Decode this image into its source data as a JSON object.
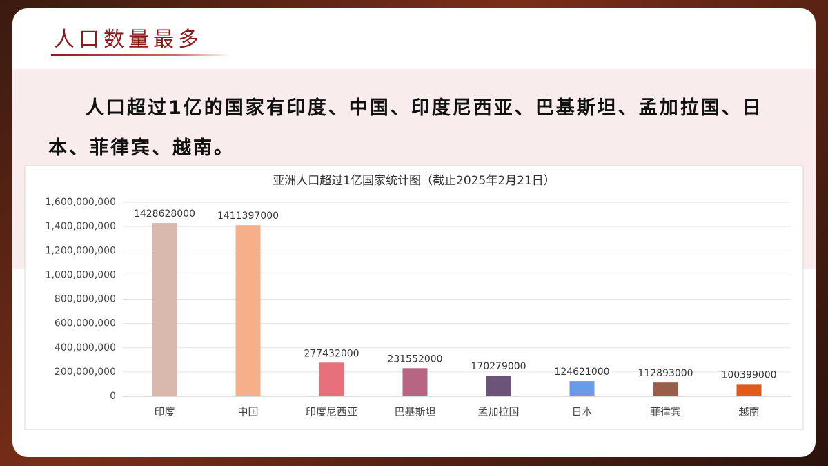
{
  "header": {
    "title": "人口数量最多"
  },
  "paragraph": "人口超过1亿的国家有印度、中国、印度尼西亚、巴基斯坦、孟加拉国、日本、菲律宾、越南。",
  "chart_data": {
    "type": "bar",
    "title": "亚洲人口超过1亿国家统计图（截止2025年2月21日）",
    "categories": [
      "印度",
      "中国",
      "印度尼西亚",
      "巴基斯坦",
      "孟加拉国",
      "日本",
      "菲律宾",
      "越南"
    ],
    "values": [
      1428628000,
      1411397000,
      277432000,
      231552000,
      170279000,
      124621000,
      112893000,
      100399000
    ],
    "colors": [
      "#d9b8ae",
      "#f5b08a",
      "#e8707c",
      "#b86483",
      "#6b5478",
      "#6a9be8",
      "#9a5d4a",
      "#e05a1a"
    ],
    "ylim": [
      0,
      1600000000
    ],
    "yticks": [
      0,
      {
        "value": 200000000,
        "label": "200,000,000"
      },
      {
        "value": 400000000,
        "label": "400,000,000"
      },
      {
        "value": 600000000,
        "label": "600,000,000"
      },
      {
        "value": 800000000,
        "label": "800,000,000"
      },
      {
        "value": 1000000000,
        "label": "1,000,000,000"
      },
      {
        "value": 1200000000,
        "label": "1,200,000,000"
      },
      {
        "value": 1400000000,
        "label": "1,400,000,000"
      },
      {
        "value": 1600000000,
        "label": "1,600,000,000"
      }
    ],
    "grid": true
  }
}
